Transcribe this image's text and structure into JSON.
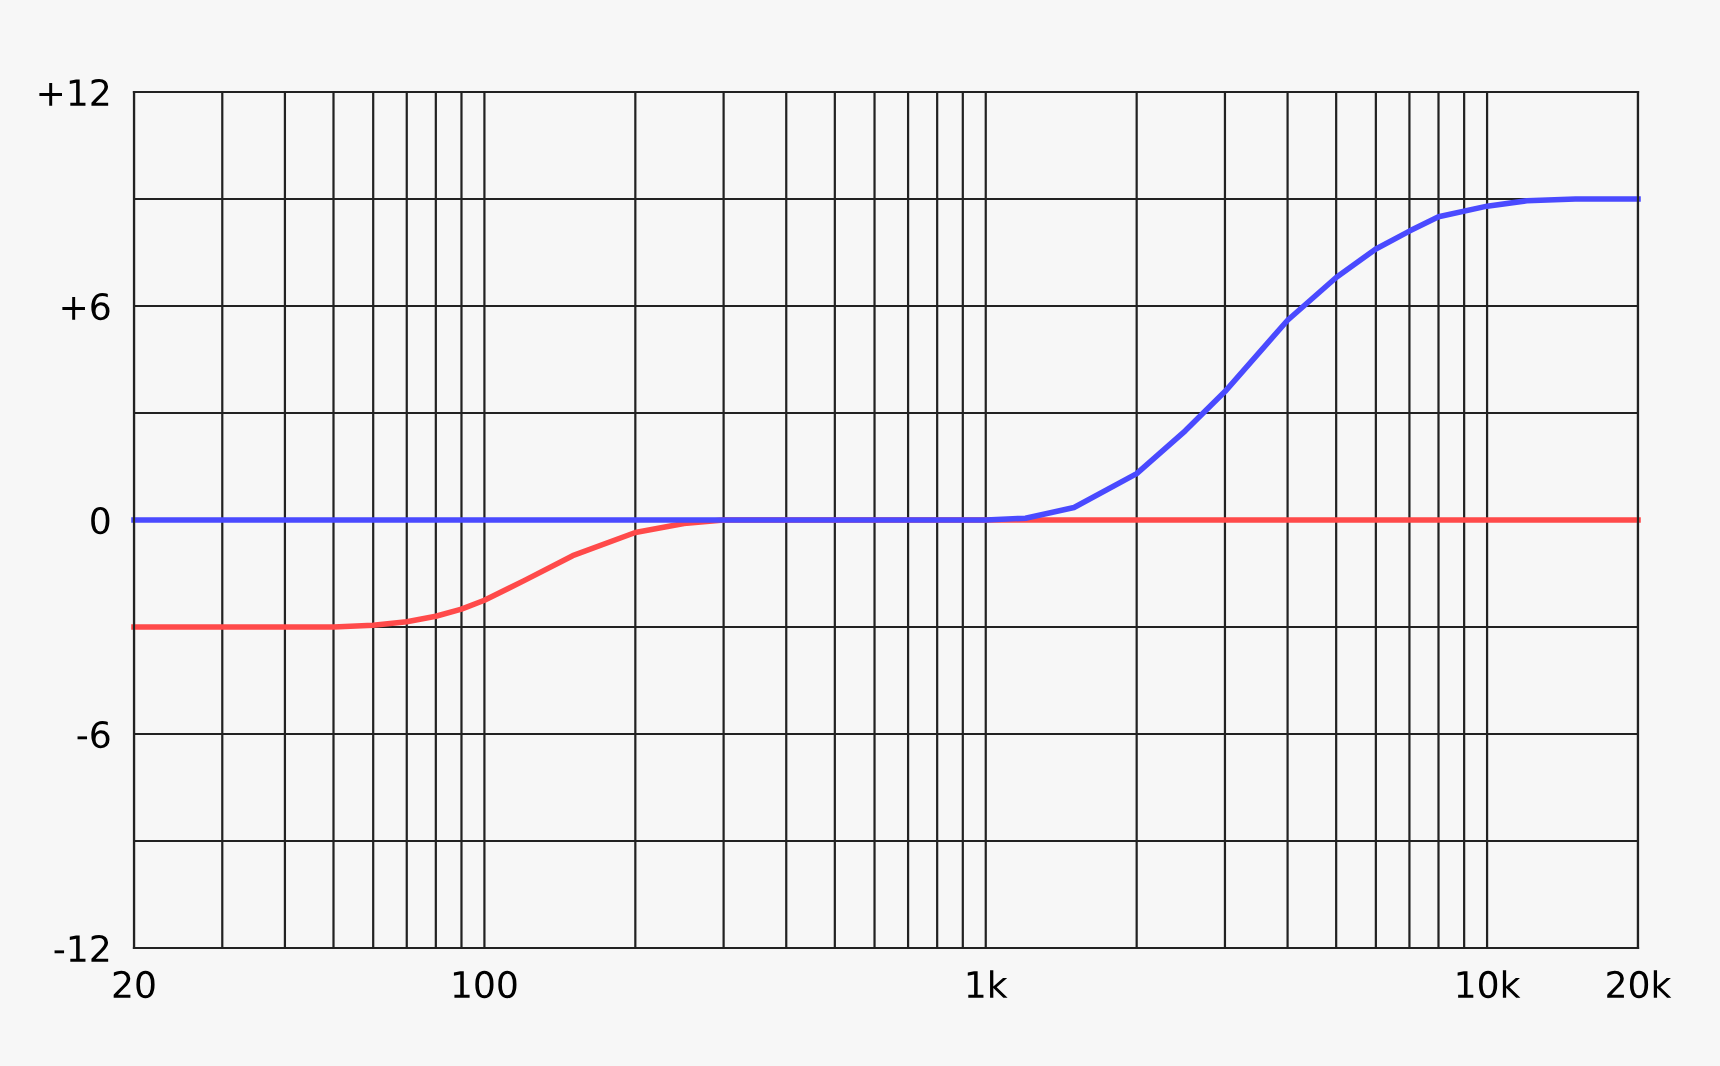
{
  "chart_data": {
    "type": "line",
    "log": "x",
    "grid": true,
    "marker": "none",
    "line_style": "solid",
    "xlim": [
      20,
      20000
    ],
    "ylim": [
      -12,
      12
    ],
    "xticks": [
      20,
      {
        "value": 30,
        "label": null
      },
      {
        "value": 40,
        "label": null
      },
      {
        "value": 50,
        "label": null
      },
      {
        "value": 60,
        "label": null
      },
      {
        "value": 70,
        "label": null
      },
      {
        "value": 80,
        "label": null
      },
      {
        "value": 90,
        "label": null
      },
      100,
      {
        "value": 200,
        "label": null
      },
      {
        "value": 300,
        "label": null
      },
      {
        "value": 400,
        "label": null
      },
      {
        "value": 500,
        "label": null
      },
      {
        "value": 600,
        "label": null
      },
      {
        "value": 700,
        "label": null
      },
      {
        "value": 800,
        "label": null
      },
      {
        "value": 900,
        "label": null
      },
      {
        "value": 1000,
        "label": "1k"
      },
      {
        "value": 2000,
        "label": null
      },
      {
        "value": 3000,
        "label": null
      },
      {
        "value": 4000,
        "label": null
      },
      {
        "value": 5000,
        "label": null
      },
      {
        "value": 6000,
        "label": null
      },
      {
        "value": 7000,
        "label": null
      },
      {
        "value": 8000,
        "label": null
      },
      {
        "value": 9000,
        "label": null
      },
      {
        "value": 10000,
        "label": "10k"
      },
      {
        "value": 20000,
        "label": "20k"
      }
    ],
    "yticks": [
      -12,
      {
        "value": -9,
        "label": null
      },
      -6,
      {
        "value": -3,
        "label": null
      },
      0,
      {
        "value": 3,
        "label": null
      },
      {
        "value": 6,
        "label": "+6"
      },
      {
        "value": 9,
        "label": null
      },
      {
        "value": 12,
        "label": "+12"
      }
    ],
    "series": [
      {
        "color": "#ff4a4a",
        "x": [
          20,
          50,
          60,
          70,
          80,
          90,
          100,
          120,
          150,
          200,
          250,
          300,
          1000,
          20000
        ],
        "values": [
          -3,
          -3,
          -2.95,
          -2.85,
          -2.7,
          -2.5,
          -2.25,
          -1.7,
          -1.0,
          -0.35,
          -0.1,
          0,
          0,
          0
        ]
      },
      {
        "color": "#4a4aff",
        "x": [
          20,
          1000,
          1200,
          1500,
          2000,
          2500,
          3000,
          4000,
          5000,
          6000,
          7000,
          8000,
          10000,
          12000,
          15000,
          20000
        ],
        "values": [
          0,
          0,
          0.05,
          0.35,
          1.3,
          2.5,
          3.6,
          5.6,
          6.8,
          7.6,
          8.1,
          8.5,
          8.8,
          8.95,
          9,
          9
        ]
      }
    ]
  }
}
